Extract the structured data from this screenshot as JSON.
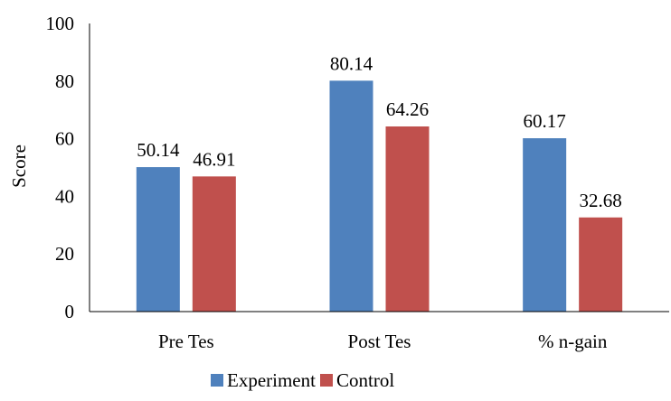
{
  "chart_data": {
    "type": "bar",
    "title": "",
    "xlabel": "",
    "ylabel": "Score",
    "categories": [
      "Pre Tes",
      "Post Tes",
      "% n-gain"
    ],
    "series": [
      {
        "name": "Experiment",
        "color": "#4F81BD",
        "values": [
          50.14,
          80.14,
          60.17
        ],
        "labels": [
          "50.14",
          "80.14",
          "60.17"
        ]
      },
      {
        "name": "Control",
        "color": "#C0504D",
        "values": [
          46.91,
          64.26,
          32.68
        ],
        "labels": [
          "46.91",
          "64.26",
          "32.68"
        ]
      }
    ],
    "ylim": [
      0,
      100
    ],
    "yticks": [
      "0",
      "20",
      "40",
      "60",
      "80",
      "100"
    ],
    "grid": false,
    "legend_position": "bottom"
  }
}
